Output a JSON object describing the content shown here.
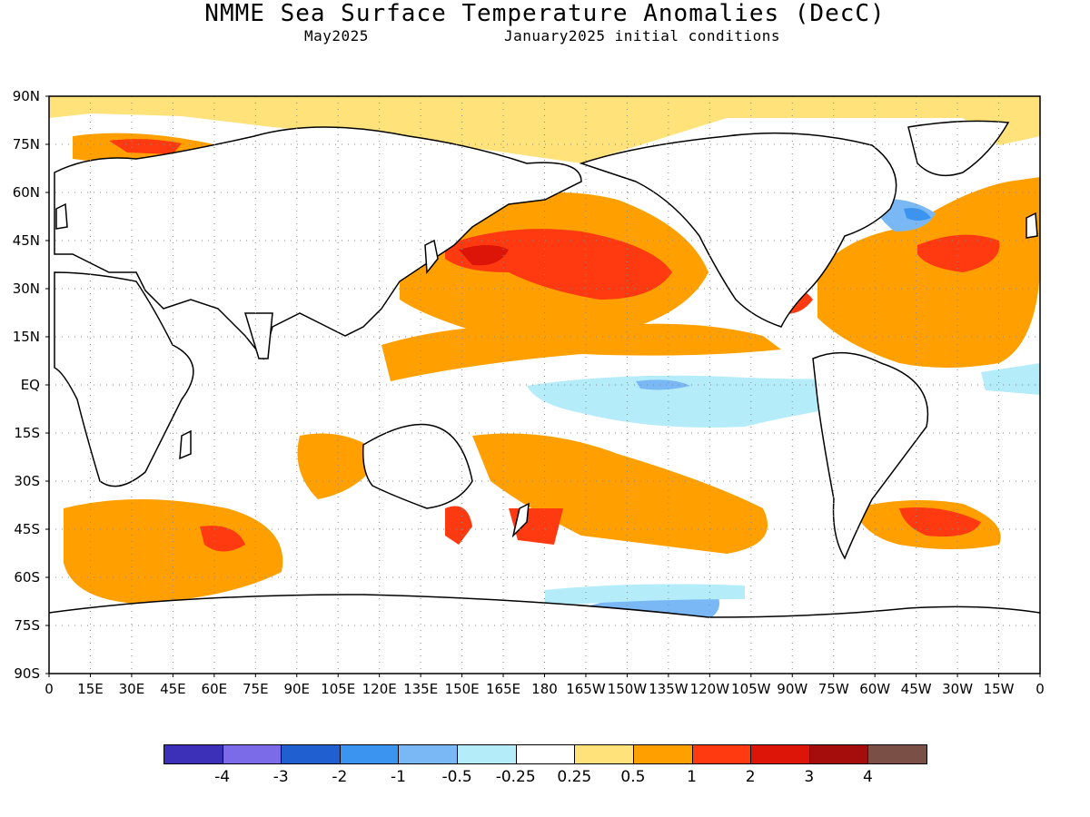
{
  "title": "NMME Sea Surface Temperature Anomalies (DecC)",
  "subtitle_left": "May2025",
  "subtitle_right": "January2025 initial conditions",
  "map": {
    "projection": "equirectangular",
    "lat_labels": [
      "90N",
      "75N",
      "60N",
      "45N",
      "30N",
      "15N",
      "EQ",
      "15S",
      "30S",
      "45S",
      "60S",
      "75S",
      "90S"
    ],
    "lon_labels": [
      "0",
      "15E",
      "30E",
      "45E",
      "60E",
      "75E",
      "90E",
      "105E",
      "120E",
      "135E",
      "150E",
      "165E",
      "180",
      "165W",
      "150W",
      "135W",
      "120W",
      "105W",
      "90W",
      "75W",
      "60W",
      "45W",
      "30W",
      "15W",
      "0"
    ],
    "grid": "dotted",
    "land_color": "#ffffff"
  },
  "colorbar": {
    "colors": [
      "#3c2fb8",
      "#7c6be8",
      "#1f5fd0",
      "#3a94f0",
      "#7ab8f5",
      "#b4ecfa",
      "#ffffff",
      "#ffe27a",
      "#ffa000",
      "#ff3a10",
      "#dd1508",
      "#a50d0d",
      "#7a4f45"
    ],
    "labels": [
      "-4",
      "-3",
      "-2",
      "-1",
      "-0.5",
      "-0.25",
      "0.25",
      "0.5",
      "1",
      "2",
      "3",
      "4"
    ]
  }
}
